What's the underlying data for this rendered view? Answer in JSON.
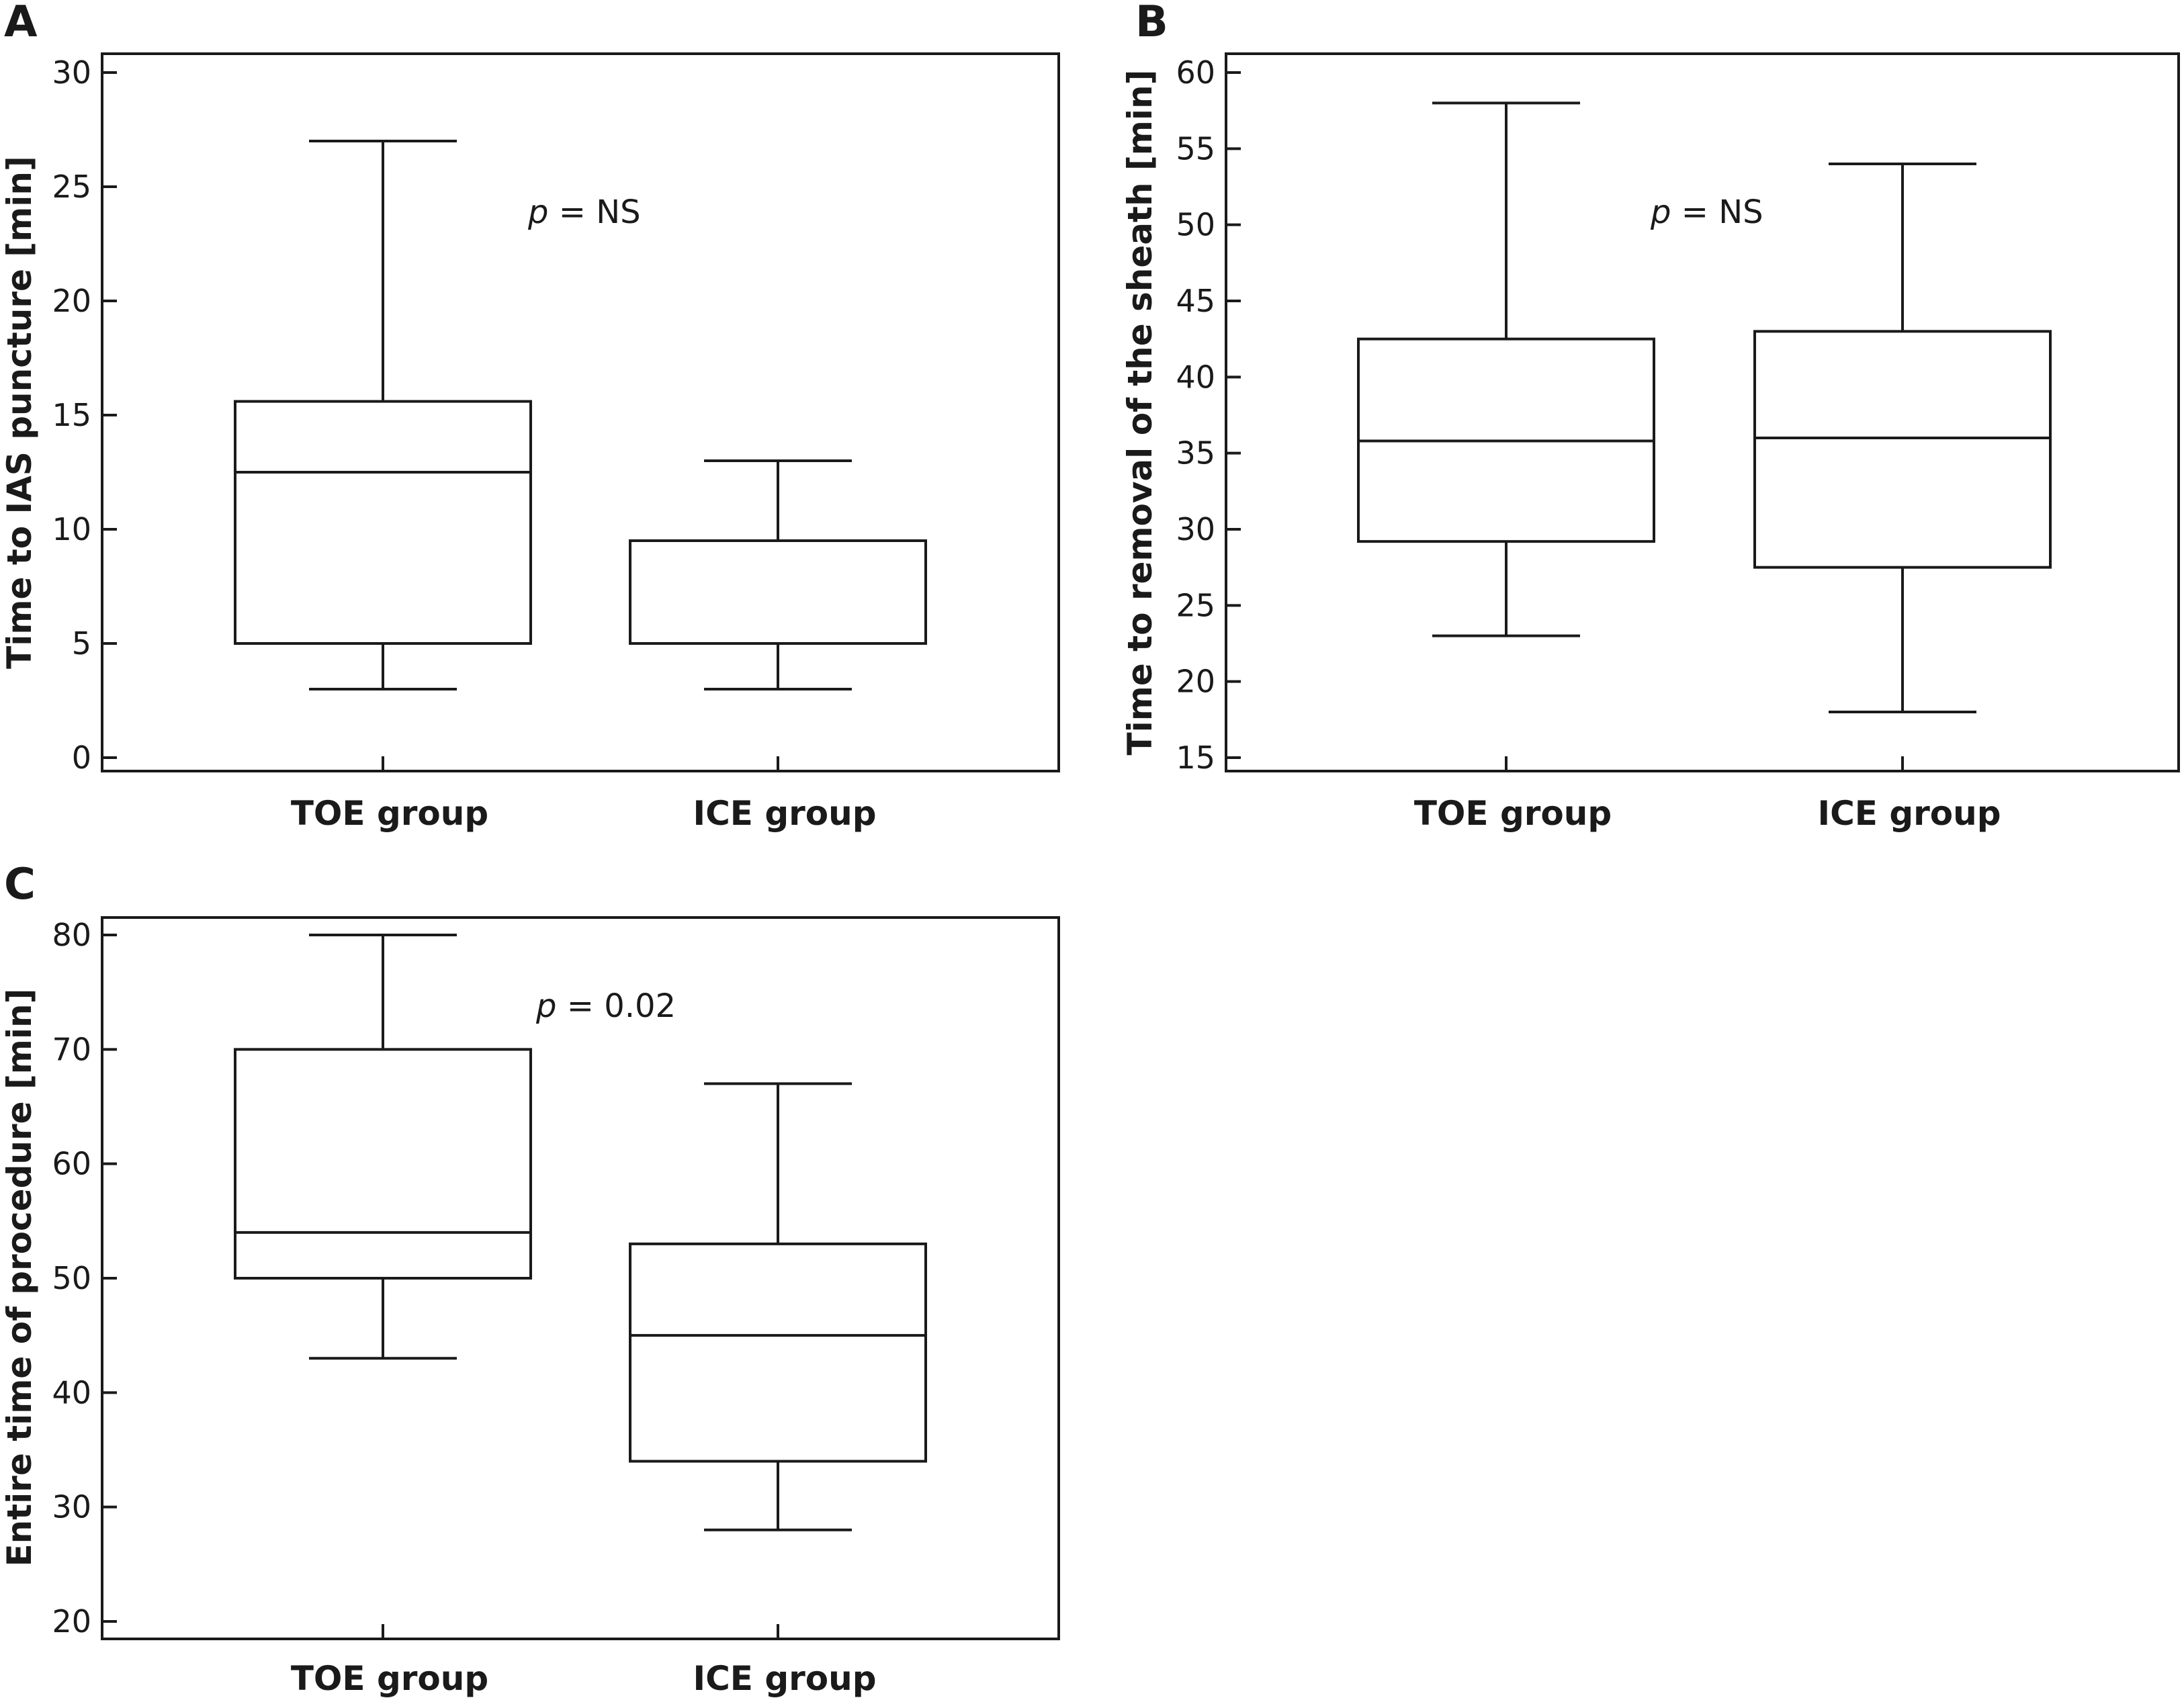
{
  "chart_data": [
    {
      "type": "box",
      "panel_label": "A",
      "ylabel": "Time to IAS puncture [min]",
      "xlabel": "",
      "ylim": [
        0,
        30
      ],
      "yticks": [
        0,
        5,
        10,
        15,
        20,
        25,
        30
      ],
      "categories": [
        "TOE group",
        "ICE group"
      ],
      "boxes": [
        {
          "category": "TOE group",
          "whisker_low": 3,
          "q1": 5,
          "median": 12.5,
          "q3": 15.6,
          "whisker_high": 27
        },
        {
          "category": "ICE group",
          "whisker_low": 3,
          "q1": 5,
          "median": 5,
          "q3": 9.5,
          "whisker_high": 13
        }
      ],
      "annotation": {
        "p_symbol": "p",
        "p_text": " = NS"
      },
      "grid": false,
      "legend": "none"
    },
    {
      "type": "box",
      "panel_label": "B",
      "ylabel": "Time to removal of the sheath [min]",
      "xlabel": "",
      "ylim": [
        15,
        60
      ],
      "yticks": [
        15,
        20,
        25,
        30,
        35,
        40,
        45,
        50,
        55,
        60
      ],
      "categories": [
        "TOE group",
        "ICE group"
      ],
      "boxes": [
        {
          "category": "TOE group",
          "whisker_low": 23,
          "q1": 29.2,
          "median": 35.8,
          "q3": 42.5,
          "whisker_high": 58
        },
        {
          "category": "ICE group",
          "whisker_low": 18,
          "q1": 27.5,
          "median": 36,
          "q3": 43,
          "whisker_high": 54
        }
      ],
      "annotation": {
        "p_symbol": "p",
        "p_text": " = NS"
      },
      "grid": false,
      "legend": "none"
    },
    {
      "type": "box",
      "panel_label": "C",
      "ylabel": "Entire time of procedure [min]",
      "xlabel": "",
      "ylim": [
        20,
        80
      ],
      "yticks": [
        20,
        30,
        40,
        50,
        60,
        70,
        80
      ],
      "categories": [
        "TOE group",
        "ICE group"
      ],
      "boxes": [
        {
          "category": "TOE group",
          "whisker_low": 43,
          "q1": 50,
          "median": 54,
          "q3": 70,
          "whisker_high": 80
        },
        {
          "category": "ICE group",
          "whisker_low": 28,
          "q1": 34,
          "median": 45,
          "q3": 53,
          "whisker_high": 67
        }
      ],
      "annotation": {
        "p_symbol": "p",
        "p_text": " = 0.02"
      },
      "grid": false,
      "legend": "none"
    }
  ]
}
